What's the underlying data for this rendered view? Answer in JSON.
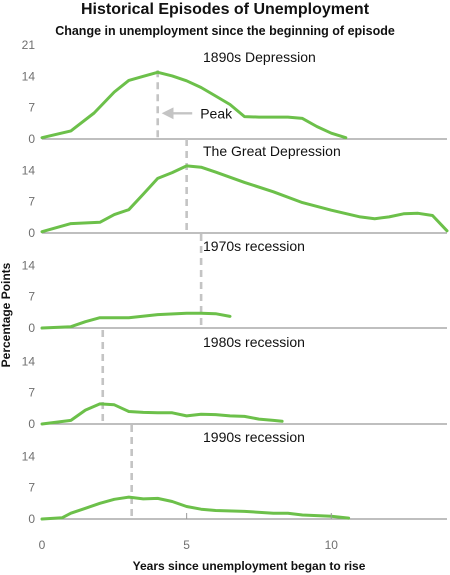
{
  "chart_data": {
    "type": "line",
    "title": "Historical Episodes of Unemployment",
    "subtitle": "Change in unemployment since the beginning of episode",
    "xlabel": "Years since unemployment began to rise",
    "ylabel": "Percentage Points",
    "xlim": [
      0,
      14
    ],
    "x_ticks": [
      0,
      5,
      10
    ],
    "colors": {
      "line": "#6cc04a",
      "peak_marker": "#c4c4c4",
      "axis": "#999999",
      "tick_text": "#6f6f6f"
    },
    "panels": [
      {
        "label": "1890s Depression",
        "ylim": [
          0,
          21
        ],
        "y_ticks": [
          0,
          7,
          14,
          21
        ],
        "peak_x": 4.0,
        "annotation": {
          "text": "Peak",
          "x": 5.4,
          "y": 5.3,
          "arrow_to_x": 4.15
        },
        "series": [
          {
            "x": 0,
            "y": 0.3
          },
          {
            "x": 1,
            "y": 1.8
          },
          {
            "x": 1.8,
            "y": 5.8
          },
          {
            "x": 2.5,
            "y": 10.5
          },
          {
            "x": 3,
            "y": 13.1
          },
          {
            "x": 3.5,
            "y": 14
          },
          {
            "x": 4,
            "y": 14.9
          },
          {
            "x": 4.5,
            "y": 14.1
          },
          {
            "x": 5,
            "y": 13
          },
          {
            "x": 5.5,
            "y": 11.5
          },
          {
            "x": 6,
            "y": 9.6
          },
          {
            "x": 6.5,
            "y": 7.7
          },
          {
            "x": 7,
            "y": 5
          },
          {
            "x": 7.5,
            "y": 4.9
          },
          {
            "x": 8.5,
            "y": 4.9
          },
          {
            "x": 9,
            "y": 4.6
          },
          {
            "x": 9.5,
            "y": 2.8
          },
          {
            "x": 10,
            "y": 1.3
          },
          {
            "x": 10.5,
            "y": 0.3
          }
        ]
      },
      {
        "label": "The Great Depression",
        "ylim": [
          0,
          21
        ],
        "y_ticks": [
          0,
          7,
          14
        ],
        "peak_x": 5.0,
        "series": [
          {
            "x": 0,
            "y": 0.3
          },
          {
            "x": 1,
            "y": 2.1
          },
          {
            "x": 2,
            "y": 2.4
          },
          {
            "x": 2.5,
            "y": 4.1
          },
          {
            "x": 3,
            "y": 5.2
          },
          {
            "x": 3.5,
            "y": 8.7
          },
          {
            "x": 4,
            "y": 12.2
          },
          {
            "x": 4.5,
            "y": 13.5
          },
          {
            "x": 5,
            "y": 15
          },
          {
            "x": 5.5,
            "y": 14.7
          },
          {
            "x": 6,
            "y": 13.6
          },
          {
            "x": 7,
            "y": 11.3
          },
          {
            "x": 8,
            "y": 9.2
          },
          {
            "x": 9,
            "y": 6.8
          },
          {
            "x": 10,
            "y": 5.1
          },
          {
            "x": 11,
            "y": 3.6
          },
          {
            "x": 11.5,
            "y": 3.2
          },
          {
            "x": 12,
            "y": 3.6
          },
          {
            "x": 12.5,
            "y": 4.3
          },
          {
            "x": 13,
            "y": 4.4
          },
          {
            "x": 13.5,
            "y": 3.9
          },
          {
            "x": 14,
            "y": 0.5
          }
        ]
      },
      {
        "label": "1970s recession",
        "ylim": [
          0,
          21
        ],
        "y_ticks": [
          0,
          7,
          14
        ],
        "peak_x": 5.5,
        "series": [
          {
            "x": 0,
            "y": 0
          },
          {
            "x": 1,
            "y": 0.3
          },
          {
            "x": 1.5,
            "y": 1.4
          },
          {
            "x": 2,
            "y": 2.3
          },
          {
            "x": 3,
            "y": 2.3
          },
          {
            "x": 4,
            "y": 3
          },
          {
            "x": 5,
            "y": 3.3
          },
          {
            "x": 5.5,
            "y": 3.3
          },
          {
            "x": 6,
            "y": 3.2
          },
          {
            "x": 6.5,
            "y": 2.6
          }
        ]
      },
      {
        "label": "1980s recession",
        "ylim": [
          0,
          21
        ],
        "y_ticks": [
          0,
          7,
          14
        ],
        "peak_x": 2.1,
        "series": [
          {
            "x": 0,
            "y": 0
          },
          {
            "x": 1,
            "y": 0.8
          },
          {
            "x": 1.5,
            "y": 3.1
          },
          {
            "x": 2,
            "y": 4.5
          },
          {
            "x": 2.5,
            "y": 4.3
          },
          {
            "x": 3,
            "y": 2.8
          },
          {
            "x": 3.5,
            "y": 2.6
          },
          {
            "x": 4,
            "y": 2.5
          },
          {
            "x": 4.5,
            "y": 2.5
          },
          {
            "x": 5,
            "y": 1.8
          },
          {
            "x": 5.5,
            "y": 2.2
          },
          {
            "x": 6,
            "y": 2.1
          },
          {
            "x": 6.5,
            "y": 1.8
          },
          {
            "x": 7,
            "y": 1.7
          },
          {
            "x": 7.5,
            "y": 1.1
          },
          {
            "x": 8,
            "y": 0.8
          },
          {
            "x": 8.3,
            "y": 0.6
          }
        ]
      },
      {
        "label": "1990s recession",
        "ylim": [
          0,
          21
        ],
        "y_ticks": [
          0,
          7,
          14
        ],
        "peak_x": 3.1,
        "series": [
          {
            "x": 0,
            "y": 0
          },
          {
            "x": 0.7,
            "y": 0.3
          },
          {
            "x": 1,
            "y": 1.3
          },
          {
            "x": 1.5,
            "y": 2.4
          },
          {
            "x": 2,
            "y": 3.5
          },
          {
            "x": 2.5,
            "y": 4.4
          },
          {
            "x": 3,
            "y": 4.9
          },
          {
            "x": 3.5,
            "y": 4.5
          },
          {
            "x": 4,
            "y": 4.6
          },
          {
            "x": 4.5,
            "y": 3.9
          },
          {
            "x": 5,
            "y": 2.8
          },
          {
            "x": 5.5,
            "y": 2.2
          },
          {
            "x": 6,
            "y": 1.9
          },
          {
            "x": 7,
            "y": 1.7
          },
          {
            "x": 8,
            "y": 1.3
          },
          {
            "x": 8.5,
            "y": 1.3
          },
          {
            "x": 9,
            "y": 0.9
          },
          {
            "x": 10,
            "y": 0.6
          },
          {
            "x": 10.6,
            "y": 0.2
          }
        ]
      }
    ]
  }
}
